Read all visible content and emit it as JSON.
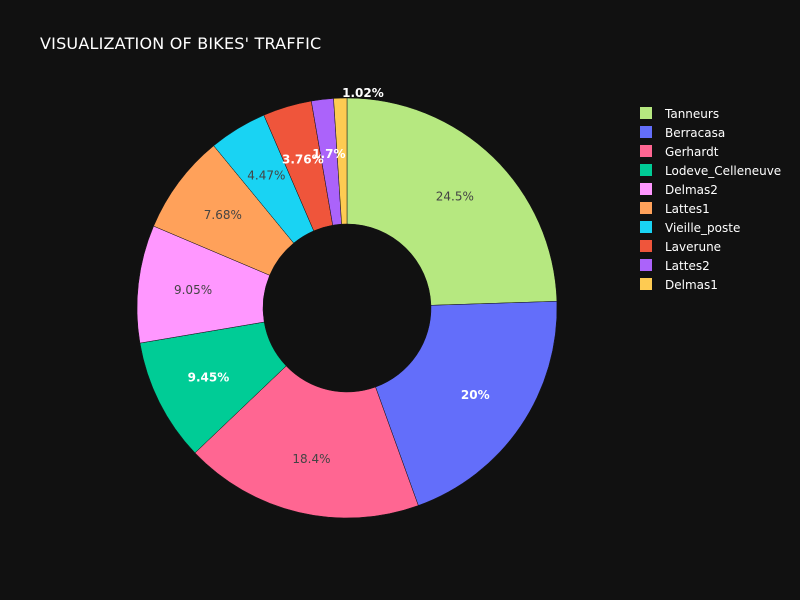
{
  "chart_data": {
    "type": "pie",
    "title": "VISUALIZATION OF BIKES' TRAFFIC",
    "hole": 0.4,
    "labels": [
      "Tanneurs",
      "Berracasa",
      "Gerhardt",
      "Lodeve_Celleneuve",
      "Delmas2",
      "Lattes1",
      "Vieille_poste",
      "Laverune",
      "Lattes2",
      "Delmas1"
    ],
    "values": [
      24.5,
      20,
      18.4,
      9.45,
      9.05,
      7.68,
      4.47,
      3.76,
      1.7,
      1.02
    ],
    "percent_labels": [
      "24.5%",
      "20%",
      "18.4%",
      "9.45%",
      "9.05%",
      "7.68%",
      "4.47%",
      "3.76%",
      "1.7%",
      "1.02%"
    ],
    "colors": [
      "#B6E880",
      "#636EFA",
      "#FF6692",
      "#00CC96",
      "#FF97FF",
      "#FFA15A",
      "#19D3F3",
      "#EF553B",
      "#AB63FA",
      "#FECB52"
    ],
    "legend_position": "top-right",
    "background": "#111111",
    "label_colors": {
      "dark": "#444444",
      "light": "#ffffff"
    }
  }
}
